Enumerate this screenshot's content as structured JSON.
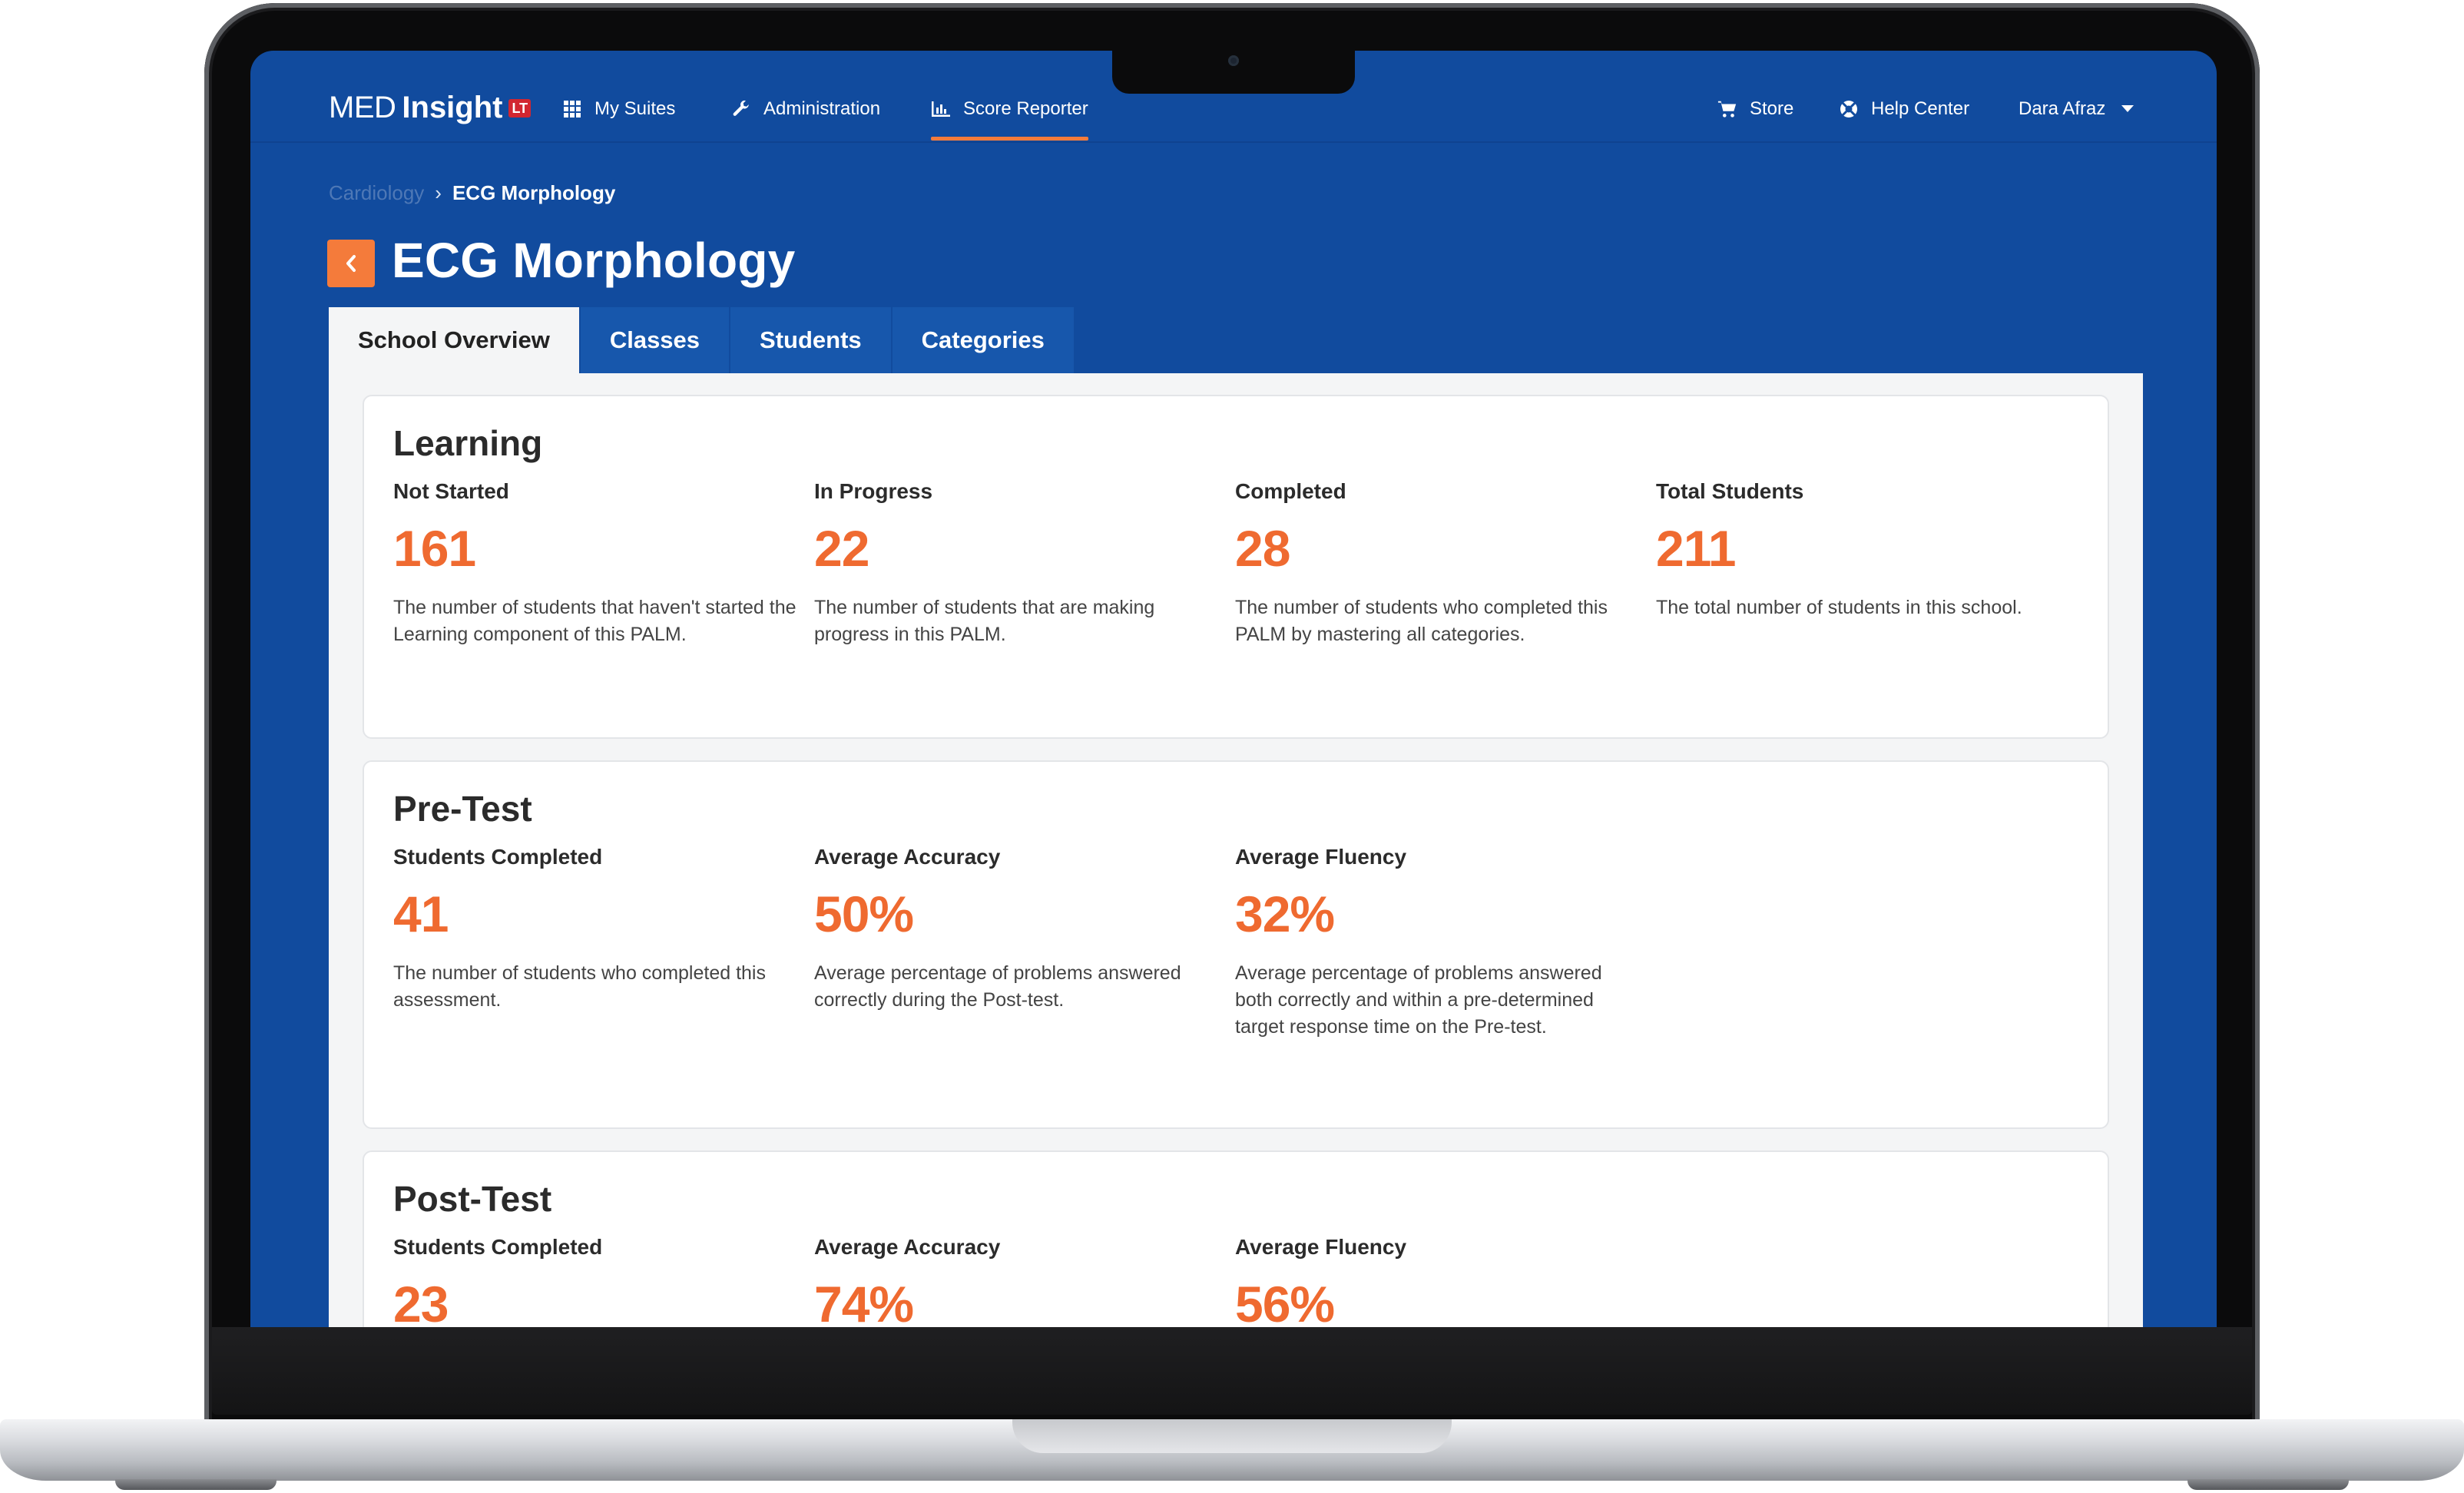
{
  "nav": {
    "logo_med": "MED",
    "logo_insight": "Insight",
    "logo_badge": "LT",
    "my_suites": "My Suites",
    "administration": "Administration",
    "score_reporter": "Score Reporter",
    "store": "Store",
    "help_center": "Help Center",
    "user_name": "Dara Afraz"
  },
  "breadcrumb": {
    "parent": "Cardiology",
    "separator": "›",
    "current": "ECG Morphology"
  },
  "page": {
    "title": "ECG Morphology"
  },
  "tabs": [
    "School Overview",
    "Classes",
    "Students",
    "Categories"
  ],
  "learning": {
    "title": "Learning",
    "stats": [
      {
        "label": "Not Started",
        "value": "161",
        "desc": "The number of students that haven't started the Learning component of this PALM."
      },
      {
        "label": "In Progress",
        "value": "22",
        "desc": "The number of students that are making progress in this PALM."
      },
      {
        "label": "Completed",
        "value": "28",
        "desc": "The number of students who completed this PALM by mastering all categories."
      },
      {
        "label": "Total Students",
        "value": "211",
        "desc": "The total number of students in this school."
      }
    ]
  },
  "pretest": {
    "title": "Pre-Test",
    "stats": [
      {
        "label": "Students Completed",
        "value": "41",
        "desc": "The number of students who completed this assessment."
      },
      {
        "label": "Average Accuracy",
        "value": "50%",
        "desc": "Average percentage of problems answered correctly during the Post-test."
      },
      {
        "label": "Average Fluency",
        "value": "32%",
        "desc": "Average percentage of problems answered both correctly and within a pre-determined target response time on the Pre-test."
      }
    ]
  },
  "posttest": {
    "title": "Post-Test",
    "stats": [
      {
        "label": "Students Completed",
        "value": "23"
      },
      {
        "label": "Average Accuracy",
        "value": "74%"
      },
      {
        "label": "Average Fluency",
        "value": "56%"
      }
    ]
  },
  "colors": {
    "brand_blue": "#114b9e",
    "accent_orange": "#ef6a30",
    "active_underline": "#f47b3b"
  }
}
